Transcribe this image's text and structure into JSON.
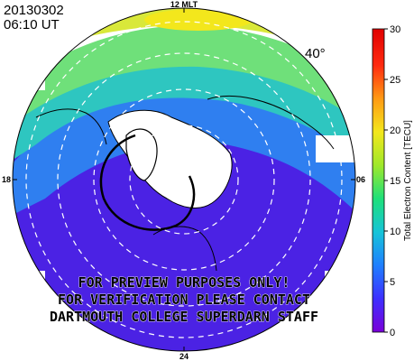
{
  "header": {
    "date": "20130302",
    "time": "06:10 UT"
  },
  "map": {
    "latitude_label": "40°",
    "mlt_labels": {
      "top": "12 MLT",
      "left": "18",
      "right": "06",
      "bottom": "24"
    },
    "watermark": [
      "FOR PREVIEW PURPOSES ONLY!",
      "FOR VERIFICATION PLEASE CONTACT",
      "DARTMOUTH COLLEGE SUPERDARN STAFF"
    ]
  },
  "colorbar": {
    "title": "Total Electron Content [TECU]",
    "ticks": [
      "0",
      "5",
      "10",
      "15",
      "20",
      "25",
      "30"
    ],
    "min": 0,
    "max": 30,
    "colors": [
      "#7a00d8",
      "#3d2fff",
      "#1f7fff",
      "#16c4d8",
      "#1ee07a",
      "#9fe82a",
      "#f3e71c",
      "#ff9a14",
      "#ff2a10",
      "#e00000"
    ]
  },
  "colors": {
    "low_tec": "#4a20e6",
    "mid_tec": "#2e86f0",
    "high_tec": "#7de36a",
    "peak_tec": "#f2e52a"
  }
}
